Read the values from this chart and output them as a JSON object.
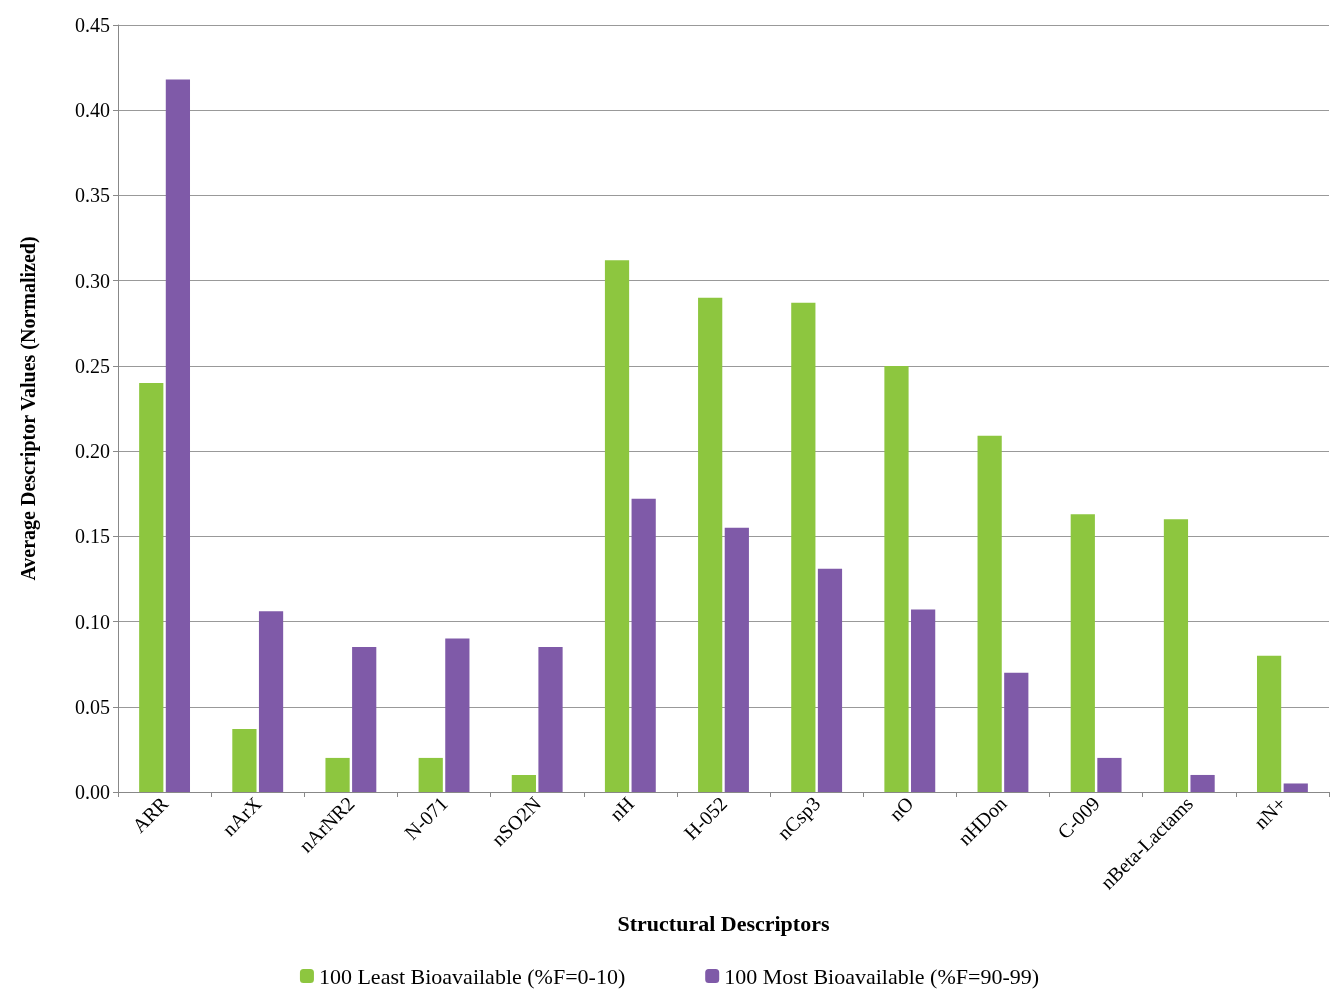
{
  "chart_data": {
    "type": "bar",
    "xlabel": "Structural Descriptors",
    "ylabel": "Average Descriptor Values (Normalized)",
    "categories": [
      "ARR",
      "nArX",
      "nArNR2",
      "N-071",
      "nSO2N",
      "nH",
      "H-052",
      "nCsp3",
      "nO",
      "nHDon",
      "C-009",
      "nBeta-Lactams",
      "nN+"
    ],
    "series": [
      {
        "name": "100 Least Bioavailable (%F=0-10)",
        "color": "#8dc63f",
        "values": [
          0.24,
          0.037,
          0.02,
          0.02,
          0.01,
          0.312,
          0.29,
          0.287,
          0.25,
          0.209,
          0.163,
          0.16,
          0.08
        ]
      },
      {
        "name": "100 Most Bioavailable (%F=90-99)",
        "color": "#7f5aa8",
        "values": [
          0.418,
          0.106,
          0.085,
          0.09,
          0.085,
          0.172,
          0.155,
          0.131,
          0.107,
          0.07,
          0.02,
          0.01,
          0.005
        ]
      }
    ],
    "ylim": [
      0,
      0.45
    ],
    "yticks": [
      {
        "value": 0,
        "label": "0.00"
      },
      {
        "value": 0.05,
        "label": "0.05"
      },
      {
        "value": 0.1,
        "label": "0.10"
      },
      {
        "value": 0.15,
        "label": "0.15"
      },
      {
        "value": 0.2,
        "label": "0.20"
      },
      {
        "value": 0.25,
        "label": "0.25"
      },
      {
        "value": 0.3,
        "label": "0.30"
      },
      {
        "value": 0.35,
        "label": "0.35"
      },
      {
        "value": 0.4,
        "label": "0.40"
      },
      {
        "value": 0.45,
        "label": "0.45"
      }
    ],
    "grid": "y",
    "legend": "bottom"
  }
}
